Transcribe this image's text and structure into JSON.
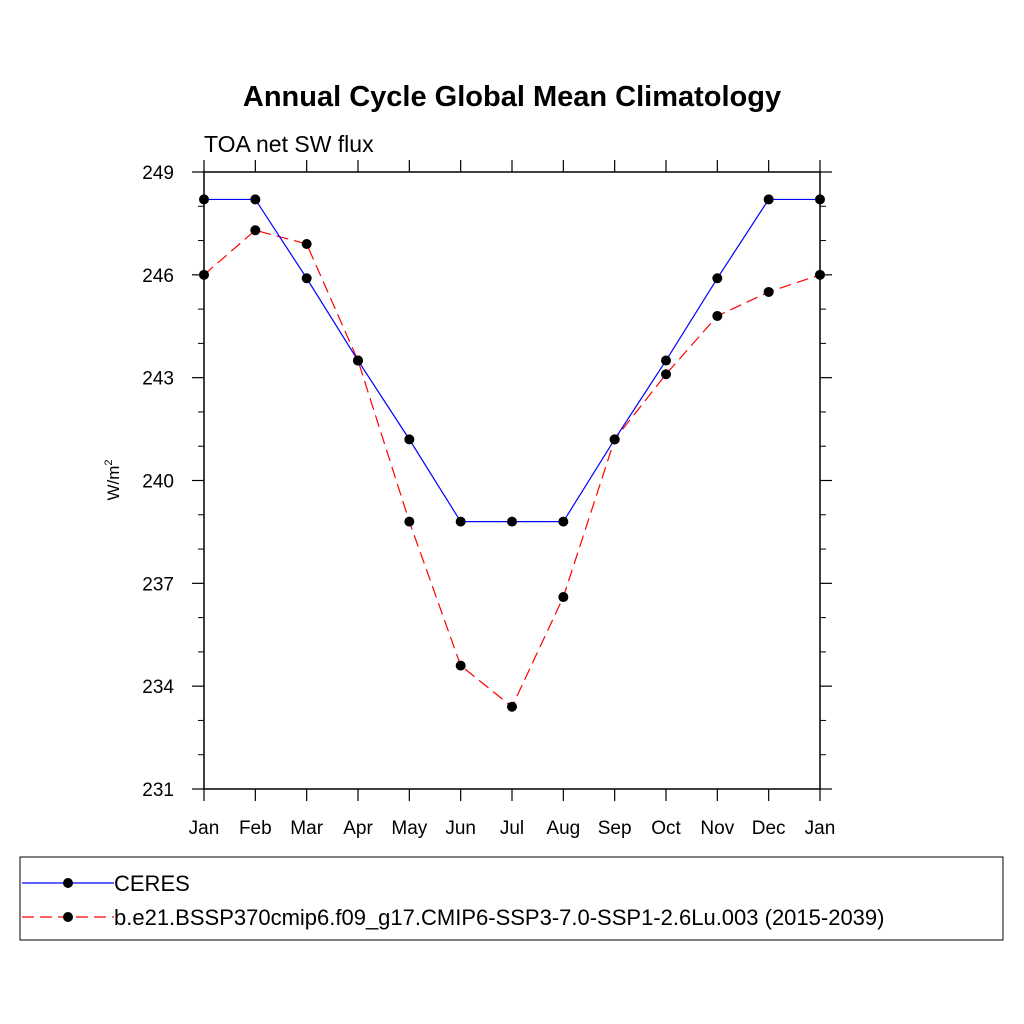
{
  "chart_data": {
    "type": "line",
    "title": "Annual Cycle Global Mean Climatology",
    "subtitle": "TOA net SW flux",
    "ylabel": "W/m",
    "ylabel_superscript": "2",
    "xlabel": "",
    "categories": [
      "Jan",
      "Feb",
      "Mar",
      "Apr",
      "May",
      "Jun",
      "Jul",
      "Aug",
      "Sep",
      "Oct",
      "Nov",
      "Dec",
      "Jan"
    ],
    "ylim": [
      231,
      249
    ],
    "yticks": [
      "231",
      "234",
      "237",
      "240",
      "243",
      "246",
      "249"
    ],
    "grid": false,
    "legend_placement": "bottom",
    "series": [
      {
        "name": "CERES",
        "color": "#0000ff",
        "dash": "solid",
        "marker": "filled-circle",
        "values": [
          248.2,
          248.2,
          245.9,
          243.5,
          241.2,
          238.8,
          238.8,
          238.8,
          241.2,
          243.5,
          245.9,
          248.2,
          248.2
        ]
      },
      {
        "name": "b.e21.BSSP370cmip6.f09_g17.CMIP6-SSP3-7.0-SSP1-2.6Lu.003 (2015-2039)",
        "color": "#ff0000",
        "dash": "dashed",
        "marker": "filled-circle",
        "values": [
          246.0,
          247.3,
          246.9,
          243.5,
          238.8,
          234.6,
          233.4,
          236.6,
          241.2,
          243.1,
          244.8,
          245.5,
          246.0
        ]
      }
    ]
  }
}
